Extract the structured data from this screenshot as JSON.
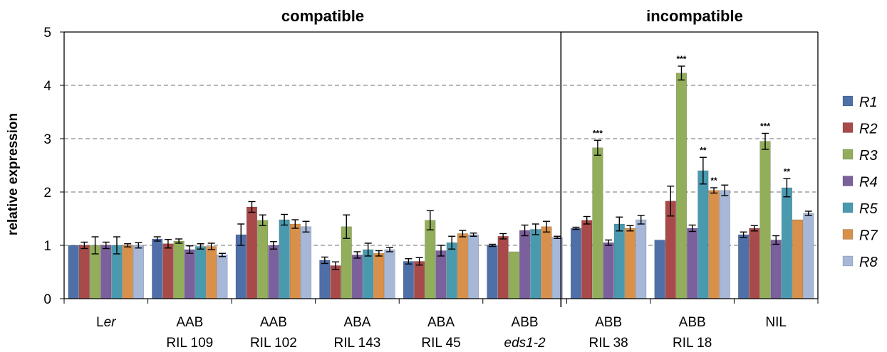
{
  "chart_data": {
    "type": "bar",
    "ylabel": "relative expression",
    "ylim": [
      0,
      5
    ],
    "yticks": [
      0,
      1,
      2,
      3,
      4,
      5
    ],
    "grid": "horizontal dashed",
    "legend_position": "right",
    "group_labels": [
      {
        "label": "compatible"
      },
      {
        "label": "incompatible"
      }
    ],
    "categories": [
      {
        "line1": "Ler",
        "line1_prefix": "L",
        "line1_italic": "er",
        "line2": ""
      },
      {
        "line1": "AAB",
        "line2": "RIL 109"
      },
      {
        "line1": "AAB",
        "line2": "RIL 102"
      },
      {
        "line1": "ABA",
        "line2": "RIL 143"
      },
      {
        "line1": "ABA",
        "line2": "RIL 45"
      },
      {
        "line1": "ABB",
        "line2": "eds1-2",
        "line2_italic": true
      },
      {
        "line1": "ABB",
        "line2": "RIL 38"
      },
      {
        "line1": "ABB",
        "line2": "RIL 18"
      },
      {
        "line1": "NIL",
        "line2": ""
      }
    ],
    "series": [
      {
        "name": "R1",
        "color": "#4F6FA8",
        "values": [
          1.0,
          1.12,
          1.2,
          0.72,
          0.7,
          1.0,
          1.32,
          1.1,
          1.2
        ],
        "errors": [
          0.0,
          0.04,
          0.2,
          0.06,
          0.05,
          0.02,
          0.02,
          0.0,
          0.05
        ]
      },
      {
        "name": "R2",
        "color": "#A94A4A",
        "values": [
          1.0,
          1.03,
          1.72,
          0.62,
          0.7,
          1.17,
          1.47,
          1.83,
          1.32
        ],
        "errors": [
          0.06,
          0.08,
          0.1,
          0.07,
          0.07,
          0.05,
          0.07,
          0.28,
          0.05
        ]
      },
      {
        "name": "R3",
        "color": "#93AE5A",
        "values": [
          1.0,
          1.08,
          1.47,
          1.35,
          1.47,
          0.88,
          2.83,
          4.23,
          2.95
        ],
        "errors": [
          0.16,
          0.04,
          0.1,
          0.22,
          0.18,
          0.0,
          0.14,
          0.13,
          0.15
        ]
      },
      {
        "name": "R4",
        "color": "#7A609C",
        "values": [
          1.0,
          0.92,
          1.0,
          0.82,
          0.9,
          1.28,
          1.05,
          1.32,
          1.1
        ],
        "errors": [
          0.06,
          0.07,
          0.07,
          0.06,
          0.1,
          0.1,
          0.05,
          0.06,
          0.08
        ]
      },
      {
        "name": "R5",
        "color": "#4A9AAF",
        "values": [
          1.0,
          0.98,
          1.48,
          0.92,
          1.05,
          1.3,
          1.4,
          2.4,
          2.08
        ],
        "errors": [
          0.16,
          0.05,
          0.1,
          0.12,
          0.12,
          0.1,
          0.13,
          0.25,
          0.17
        ]
      },
      {
        "name": "R7",
        "color": "#D9904A",
        "values": [
          1.0,
          0.98,
          1.4,
          0.85,
          1.22,
          1.35,
          1.32,
          2.03,
          1.48
        ],
        "errors": [
          0.03,
          0.06,
          0.08,
          0.05,
          0.06,
          0.1,
          0.05,
          0.05,
          0.0
        ]
      },
      {
        "name": "R8",
        "color": "#A6B7D8",
        "values": [
          1.0,
          0.82,
          1.35,
          0.92,
          1.2,
          1.15,
          1.48,
          2.03,
          1.6
        ],
        "errors": [
          0.05,
          0.03,
          0.1,
          0.04,
          0.03,
          0.02,
          0.08,
          0.1,
          0.04
        ]
      }
    ],
    "significance": [
      {
        "series": "R3",
        "category": 6,
        "label": "***"
      },
      {
        "series": "R3",
        "category": 7,
        "label": "***"
      },
      {
        "series": "R5",
        "category": 7,
        "label": "**"
      },
      {
        "series": "R7",
        "category": 7,
        "label": "**"
      },
      {
        "series": "R3",
        "category": 8,
        "label": "***"
      },
      {
        "series": "R5",
        "category": 8,
        "label": "**"
      }
    ]
  }
}
